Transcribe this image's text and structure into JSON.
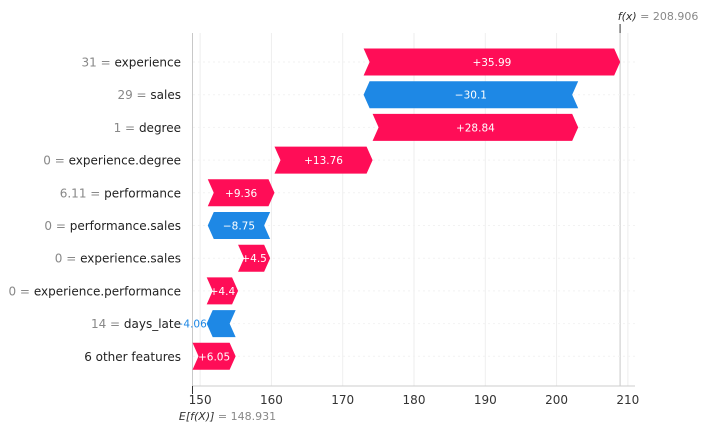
{
  "chart_data": {
    "type": "waterfall",
    "fx_label": "f(x)",
    "fx_value": "208.906",
    "base_label": "E[f(X)]",
    "base_value": "148.931",
    "base": 148.931,
    "final": 208.906,
    "xlim": [
      149,
      211
    ],
    "xticks": [
      150,
      160,
      170,
      180,
      190,
      200,
      210
    ],
    "colors": {
      "positive": "#FF0D57",
      "negative": "#1E88E5"
    },
    "features": [
      {
        "value_text": "31",
        "name": "experience",
        "contribution": 35.99,
        "label": "+35.99"
      },
      {
        "value_text": "29",
        "name": "sales",
        "contribution": -30.1,
        "label": "−30.1"
      },
      {
        "value_text": "1",
        "name": "degree",
        "contribution": 28.84,
        "label": "+28.84"
      },
      {
        "value_text": "0",
        "name": "experience.degree",
        "contribution": 13.76,
        "label": "+13.76"
      },
      {
        "value_text": "6.11",
        "name": "performance",
        "contribution": 9.36,
        "label": "+9.36"
      },
      {
        "value_text": "0",
        "name": "performance.sales",
        "contribution": -8.75,
        "label": "−8.75"
      },
      {
        "value_text": "0",
        "name": "experience.sales",
        "contribution": 4.5,
        "label": "+4.5"
      },
      {
        "value_text": "0",
        "name": "experience.performance",
        "contribution": 4.4,
        "label": "+4.4"
      },
      {
        "value_text": "14",
        "name": "days_late",
        "contribution": -4.06,
        "label": "−4.06"
      },
      {
        "value_text": "",
        "name": "6 other features",
        "contribution": 6.05,
        "label": "+6.05"
      }
    ]
  }
}
